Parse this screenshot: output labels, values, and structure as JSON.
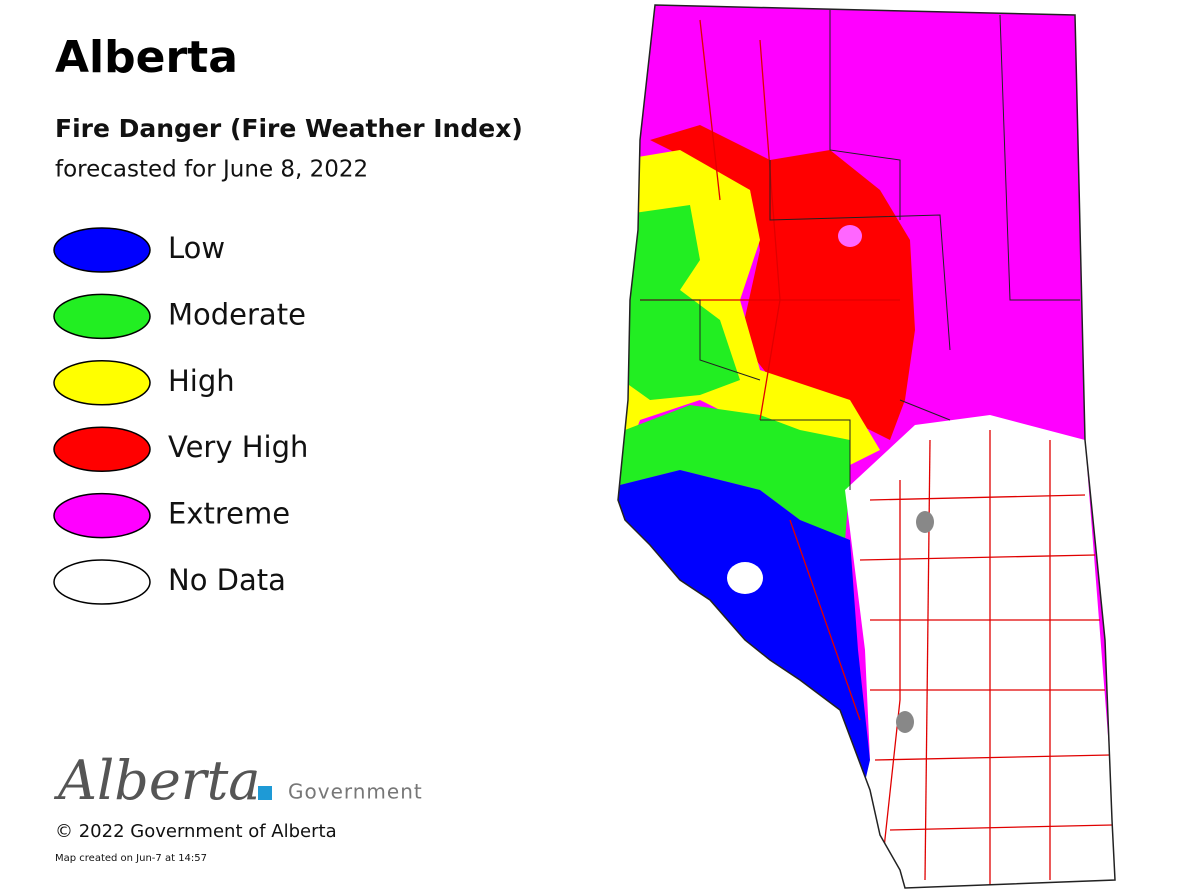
{
  "header": {
    "title": "Alberta",
    "subtitle": "Fire Danger (Fire Weather Index)",
    "date": "forecasted for June 8, 2022"
  },
  "legend": {
    "items": [
      {
        "label": "Low",
        "color": "#0000ff"
      },
      {
        "label": "Moderate",
        "color": "#22ee22"
      },
      {
        "label": "High",
        "color": "#ffff00"
      },
      {
        "label": "Very High",
        "color": "#ff0000"
      },
      {
        "label": "Extreme",
        "color": "#ff00ff"
      },
      {
        "label": "No Data",
        "color": "#ffffff"
      }
    ]
  },
  "footer": {
    "logo": "Alberta",
    "logo_suffix": "Government",
    "copyright": "© 2022 Government of Alberta",
    "note": "Map created on Jun-7 at 14:57"
  }
}
